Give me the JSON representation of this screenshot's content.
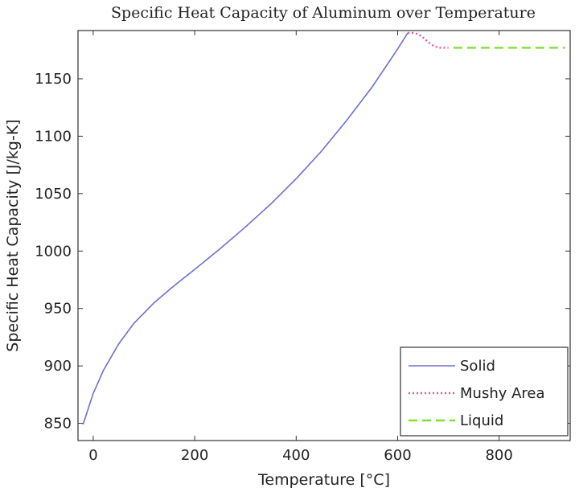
{
  "chart_data": {
    "type": "line",
    "title": "Specific Heat Capacity of Aluminum over Temperature",
    "xlabel": "Temperature [°C]",
    "ylabel": "Specific Heat Capacity [J/kg-K]",
    "xlim": [
      -30,
      940
    ],
    "ylim": [
      835,
      1192
    ],
    "xticks": [
      0,
      200,
      400,
      600,
      800
    ],
    "yticks": [
      850,
      900,
      950,
      1000,
      1050,
      1100,
      1150
    ],
    "grid": false,
    "legend_position": "bottom-right",
    "series": [
      {
        "name": "Solid",
        "style": "solid",
        "color": "#6f6fcf",
        "x": [
          -20,
          0,
          20,
          50,
          80,
          120,
          160,
          200,
          250,
          300,
          350,
          400,
          450,
          500,
          550,
          600,
          620
        ],
        "y": [
          849,
          876,
          896,
          919,
          937,
          955,
          970,
          984,
          1002,
          1021,
          1041,
          1063,
          1087,
          1114,
          1143,
          1176,
          1190
        ]
      },
      {
        "name": "Mushy Area",
        "style": "dotted",
        "color": "#e0559a",
        "x": [
          620,
          630,
          640,
          650,
          660,
          670,
          680,
          690,
          700
        ],
        "y": [
          1190,
          1190,
          1189,
          1186,
          1182,
          1179,
          1177,
          1177,
          1177
        ]
      },
      {
        "name": "Liquid",
        "style": "dashed",
        "color": "#7fe03a",
        "x": [
          710,
          930
        ],
        "y": [
          1177,
          1177
        ]
      }
    ]
  }
}
